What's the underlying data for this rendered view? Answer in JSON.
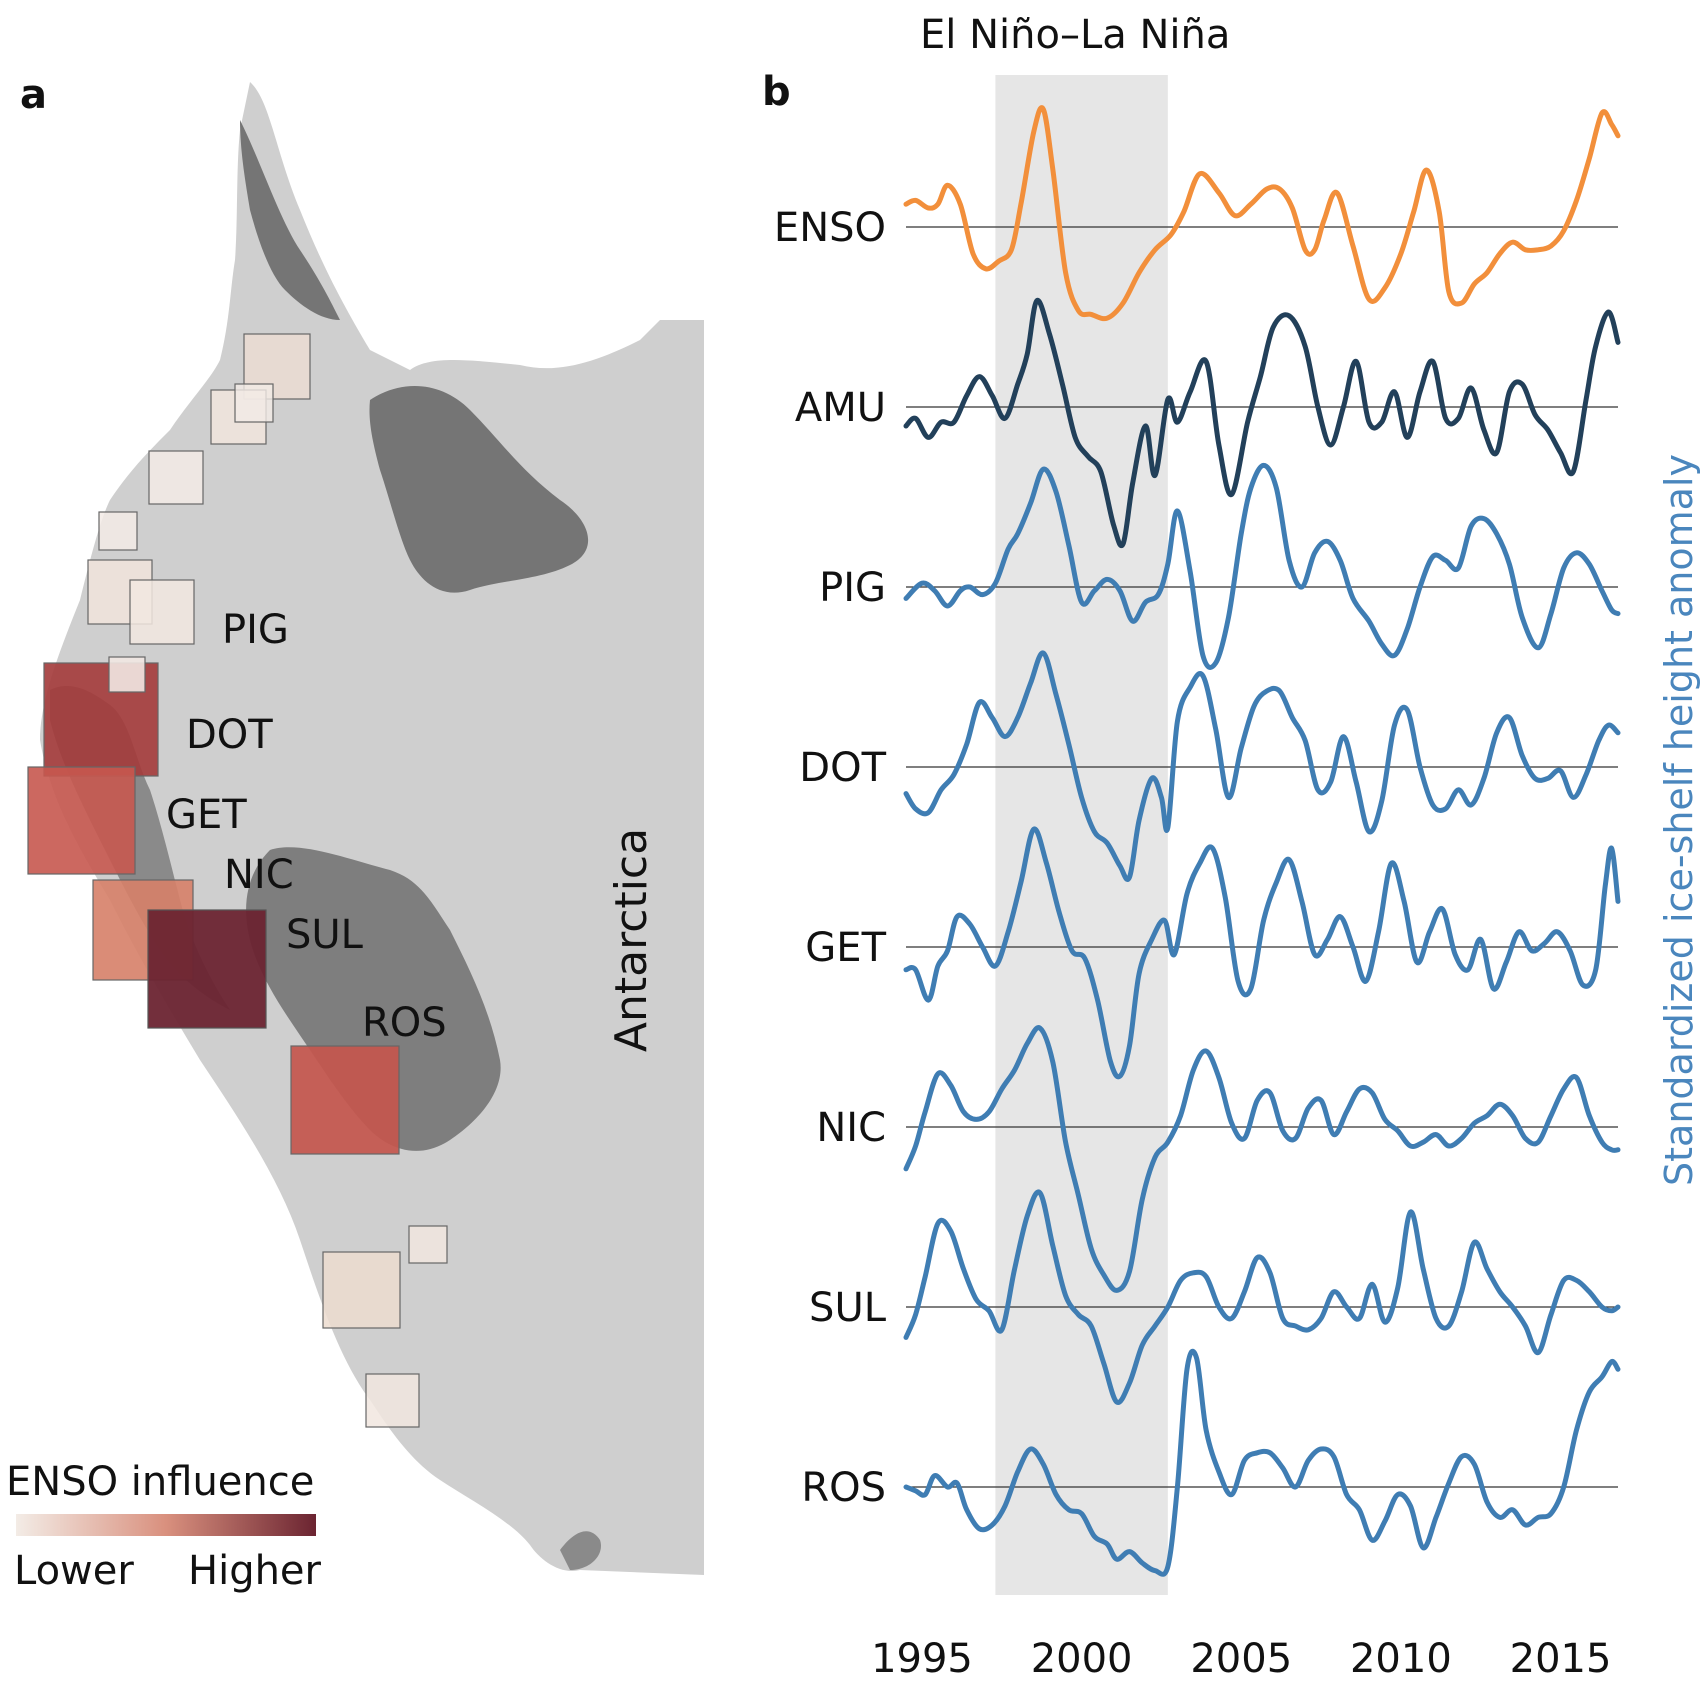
{
  "panel_a": {
    "label": "a",
    "region_label": "Antarctica",
    "boxes": [
      {
        "label": "PIG",
        "influence": 0.05
      },
      {
        "label": "DOT",
        "influence": 0.8
      },
      {
        "label": "GET",
        "influence": 0.6
      },
      {
        "label": "NIC",
        "influence": 0.5
      },
      {
        "label": "SUL",
        "influence": 1.0
      },
      {
        "label": "ROS",
        "influence": 0.7
      }
    ],
    "legend": {
      "title": "ENSO influence",
      "low_label": "Lower",
      "high_label": "Higher",
      "low_color": "#f3ece6",
      "high_color": "#6b2431"
    }
  },
  "panel_b": {
    "label": "b",
    "shade_label": "El Niño–La Niña",
    "shade_range": [
      1997.3,
      2002.7
    ],
    "ylabel": "Standardized ice-shelf height anomaly",
    "xticks": [
      "1995",
      "2000",
      "2005",
      "2010",
      "2015"
    ]
  },
  "chart_data": {
    "type": "line",
    "x_range": [
      1994.5,
      2016.8
    ],
    "x_ticks": [
      1995,
      2000,
      2005,
      2010,
      2015
    ],
    "shaded_interval": [
      1997.3,
      2002.7
    ],
    "ylabel": "Standardized ice-shelf height anomaly",
    "grid": false,
    "y_unit": "standardized anomaly (each series offset vertically, zero line shown)",
    "series": [
      {
        "name": "ENSO",
        "color": "#f28f3b",
        "x": [
          1994.5,
          1994.8,
          1995.2,
          1995.5,
          1995.8,
          1996.2,
          1996.6,
          1997.0,
          1997.4,
          1997.8,
          1998.1,
          1998.5,
          1998.8,
          1999.1,
          1999.5,
          1999.9,
          2000.3,
          2000.8,
          2001.3,
          2001.8,
          2002.3,
          2002.8,
          2003.2,
          2003.7,
          2004.3,
          2004.8,
          2005.3,
          2005.8,
          2006.2,
          2006.6,
          2007.0,
          2007.3,
          2007.6,
          2008.0,
          2008.5,
          2009.0,
          2009.5,
          2010.0,
          2010.4,
          2010.8,
          2011.2,
          2011.5,
          2011.9,
          2012.3,
          2012.7,
          2013.1,
          2013.5,
          2013.9,
          2014.3,
          2014.7,
          2015.1,
          2015.5,
          2015.9,
          2016.3,
          2016.6,
          2016.8
        ],
        "y": [
          0.6,
          0.7,
          0.5,
          0.6,
          1.1,
          0.6,
          -0.7,
          -1.1,
          -0.9,
          -0.6,
          0.6,
          2.5,
          3.1,
          1.5,
          -1.2,
          -2.2,
          -2.3,
          -2.4,
          -2.0,
          -1.2,
          -0.6,
          -0.2,
          0.4,
          1.4,
          0.9,
          0.3,
          0.6,
          1.0,
          1.0,
          0.5,
          -0.6,
          -0.6,
          0.2,
          0.9,
          -0.5,
          -1.9,
          -1.6,
          -0.7,
          0.4,
          1.5,
          0.4,
          -1.7,
          -2.0,
          -1.5,
          -1.2,
          -0.7,
          -0.4,
          -0.6,
          -0.6,
          -0.5,
          -0.1,
          0.7,
          1.8,
          3.0,
          2.7,
          2.4
        ]
      },
      {
        "name": "AMU",
        "color": "#22405a",
        "x": [
          1994.5,
          1994.8,
          1995.2,
          1995.6,
          1996.0,
          1996.4,
          1996.8,
          1997.2,
          1997.6,
          1998.0,
          1998.3,
          1998.6,
          1999.0,
          1999.4,
          1999.8,
          2000.2,
          2000.6,
          2001.0,
          2001.3,
          2001.6,
          2002.0,
          2002.3,
          2002.7,
          2003.0,
          2003.4,
          2003.9,
          2004.3,
          2004.7,
          2005.2,
          2005.6,
          2006.0,
          2006.5,
          2007.0,
          2007.4,
          2007.8,
          2008.2,
          2008.6,
          2009.0,
          2009.4,
          2009.8,
          2010.2,
          2010.6,
          2011.0,
          2011.4,
          2011.8,
          2012.2,
          2012.6,
          2013.0,
          2013.4,
          2013.8,
          2014.2,
          2014.6,
          2015.0,
          2015.4,
          2015.8,
          2016.1,
          2016.5,
          2016.8
        ],
        "y": [
          -0.5,
          -0.3,
          -0.8,
          -0.4,
          -0.4,
          0.3,
          0.8,
          0.3,
          -0.3,
          0.6,
          1.4,
          2.8,
          1.9,
          0.6,
          -0.8,
          -1.3,
          -1.7,
          -3.1,
          -3.6,
          -2.0,
          -0.5,
          -1.8,
          0.2,
          -0.4,
          0.4,
          1.2,
          -1.0,
          -2.3,
          -0.4,
          0.8,
          2.1,
          2.4,
          1.6,
          0.0,
          -1.0,
          0.0,
          1.2,
          -0.4,
          -0.4,
          0.4,
          -0.8,
          0.4,
          1.2,
          -0.3,
          -0.3,
          0.5,
          -0.6,
          -1.2,
          0.4,
          0.6,
          -0.2,
          -0.6,
          -1.2,
          -1.7,
          0.2,
          1.6,
          2.5,
          1.7
        ]
      },
      {
        "name": "PIG",
        "color": "#3f7db3",
        "x": [
          1994.5,
          1995.0,
          1995.4,
          1995.8,
          1996.2,
          1996.5,
          1996.9,
          1997.3,
          1997.7,
          1998.0,
          1998.4,
          1998.8,
          1999.2,
          1999.6,
          2000.0,
          2000.4,
          2000.8,
          2001.2,
          2001.6,
          2002.0,
          2002.4,
          2002.7,
          2003.0,
          2003.4,
          2003.8,
          2004.2,
          2004.6,
          2005.0,
          2005.3,
          2005.7,
          2006.1,
          2006.5,
          2006.9,
          2007.3,
          2007.7,
          2008.1,
          2008.5,
          2009.0,
          2009.4,
          2009.8,
          2010.2,
          2010.6,
          2011.0,
          2011.4,
          2011.8,
          2012.2,
          2012.6,
          2013.0,
          2013.4,
          2013.8,
          2014.3,
          2014.7,
          2015.1,
          2015.5,
          2015.9,
          2016.3,
          2016.6,
          2016.8
        ],
        "y": [
          -0.3,
          0.1,
          -0.1,
          -0.5,
          -0.1,
          0.0,
          -0.2,
          0.1,
          1.0,
          1.4,
          2.2,
          3.1,
          2.5,
          1.1,
          -0.4,
          -0.1,
          0.2,
          -0.1,
          -0.9,
          -0.4,
          -0.2,
          0.6,
          2.0,
          0.4,
          -1.8,
          -2.0,
          -0.8,
          1.4,
          2.6,
          3.2,
          2.6,
          0.7,
          0.0,
          0.9,
          1.2,
          0.7,
          -0.3,
          -0.9,
          -1.5,
          -1.8,
          -1.1,
          0.0,
          0.8,
          0.7,
          0.5,
          1.6,
          1.8,
          1.4,
          0.6,
          -0.8,
          -1.6,
          -0.7,
          0.5,
          0.9,
          0.6,
          -0.1,
          -0.6,
          -0.7
        ]
      },
      {
        "name": "DOT",
        "color": "#3f7db3",
        "x": [
          1994.5,
          1994.8,
          1995.2,
          1995.6,
          1996.0,
          1996.4,
          1996.8,
          1997.2,
          1997.6,
          1998.0,
          1998.4,
          1998.8,
          1999.2,
          1999.6,
          2000.0,
          2000.4,
          2000.8,
          2001.2,
          2001.5,
          2001.8,
          2002.2,
          2002.5,
          2002.7,
          2003.0,
          2003.4,
          2003.8,
          2004.2,
          2004.6,
          2005.0,
          2005.4,
          2005.8,
          2006.2,
          2006.6,
          2007.0,
          2007.4,
          2007.8,
          2008.2,
          2008.6,
          2009.0,
          2009.4,
          2009.8,
          2010.2,
          2010.6,
          2011.0,
          2011.4,
          2011.8,
          2012.2,
          2012.6,
          2013.0,
          2013.4,
          2013.8,
          2014.2,
          2014.6,
          2015.0,
          2015.4,
          2015.8,
          2016.2,
          2016.5,
          2016.8
        ],
        "y": [
          -0.7,
          -1.1,
          -1.2,
          -0.6,
          -0.2,
          0.6,
          1.7,
          1.3,
          0.8,
          1.3,
          2.2,
          3.0,
          1.9,
          0.6,
          -0.8,
          -1.7,
          -2.0,
          -2.6,
          -2.9,
          -1.4,
          -0.3,
          -0.8,
          -1.6,
          1.2,
          2.1,
          2.4,
          1.0,
          -0.8,
          0.5,
          1.6,
          2.0,
          2.0,
          1.3,
          0.7,
          -0.6,
          -0.4,
          0.8,
          -0.4,
          -1.7,
          -0.9,
          1.1,
          1.5,
          0.0,
          -1.0,
          -1.1,
          -0.6,
          -1.0,
          -0.3,
          0.9,
          1.3,
          0.3,
          -0.3,
          -0.3,
          -0.1,
          -0.8,
          -0.2,
          0.7,
          1.1,
          0.9
        ]
      },
      {
        "name": "GET",
        "color": "#3f7db3",
        "x": [
          1994.5,
          1994.8,
          1995.2,
          1995.5,
          1995.8,
          1996.1,
          1996.5,
          1996.9,
          1997.3,
          1997.7,
          1998.1,
          1998.5,
          1998.9,
          1999.3,
          1999.7,
          2000.1,
          2000.5,
          2000.9,
          2001.2,
          2001.5,
          2001.8,
          2002.2,
          2002.6,
          2002.9,
          2003.3,
          2003.7,
          2004.1,
          2004.5,
          2004.9,
          2005.3,
          2005.7,
          2006.1,
          2006.5,
          2006.9,
          2007.3,
          2007.7,
          2008.1,
          2008.5,
          2008.9,
          2009.3,
          2009.7,
          2010.1,
          2010.5,
          2010.9,
          2011.3,
          2011.7,
          2012.1,
          2012.5,
          2012.9,
          2013.3,
          2013.7,
          2014.1,
          2014.5,
          2014.9,
          2015.3,
          2015.7,
          2016.1,
          2016.4,
          2016.6,
          2016.8
        ],
        "y": [
          -0.6,
          -0.6,
          -1.4,
          -0.5,
          -0.1,
          0.8,
          0.6,
          0.0,
          -0.5,
          0.4,
          1.7,
          3.1,
          2.2,
          0.9,
          -0.1,
          -0.3,
          -1.4,
          -3.0,
          -3.4,
          -2.6,
          -0.7,
          0.2,
          0.7,
          -0.2,
          1.4,
          2.2,
          2.6,
          1.3,
          -0.9,
          -1.1,
          0.7,
          1.7,
          2.3,
          1.2,
          -0.2,
          0.2,
          0.8,
          0.0,
          -0.9,
          0.4,
          2.2,
          1.2,
          -0.4,
          0.4,
          1.0,
          -0.2,
          -0.6,
          0.2,
          -1.1,
          -0.4,
          0.4,
          -0.1,
          0.1,
          0.4,
          -0.1,
          -1.0,
          -0.6,
          1.6,
          2.6,
          1.2
        ]
      },
      {
        "name": "NIC",
        "color": "#3f7db3",
        "x": [
          1994.5,
          1994.8,
          1995.1,
          1995.5,
          1995.9,
          1996.3,
          1996.7,
          1997.1,
          1997.5,
          1997.9,
          1998.3,
          1998.7,
          1999.1,
          1999.5,
          1999.9,
          2000.3,
          2000.7,
          2001.1,
          2001.5,
          2001.9,
          2002.3,
          2002.7,
          2003.1,
          2003.5,
          2003.9,
          2004.3,
          2004.7,
          2005.1,
          2005.5,
          2005.9,
          2006.3,
          2006.7,
          2007.1,
          2007.5,
          2007.9,
          2008.3,
          2008.7,
          2009.1,
          2009.5,
          2009.9,
          2010.3,
          2010.7,
          2011.1,
          2011.5,
          2011.9,
          2012.3,
          2012.7,
          2013.1,
          2013.5,
          2013.9,
          2014.3,
          2014.7,
          2015.1,
          2015.5,
          2015.9,
          2016.3,
          2016.6,
          2016.8
        ],
        "y": [
          -1.1,
          -0.5,
          0.4,
          1.4,
          1.1,
          0.4,
          0.2,
          0.4,
          1.0,
          1.5,
          2.2,
          2.6,
          1.7,
          -0.4,
          -1.8,
          -3.2,
          -3.9,
          -4.3,
          -3.8,
          -1.9,
          -0.8,
          -0.4,
          0.3,
          1.5,
          2.0,
          1.3,
          0.1,
          -0.3,
          0.7,
          0.9,
          -0.1,
          -0.3,
          0.5,
          0.7,
          -0.2,
          0.4,
          1.0,
          0.9,
          0.2,
          -0.1,
          -0.5,
          -0.4,
          -0.2,
          -0.5,
          -0.3,
          0.1,
          0.3,
          0.6,
          0.3,
          -0.3,
          -0.4,
          0.3,
          1.0,
          1.3,
          0.3,
          -0.4,
          -0.6,
          -0.6
        ]
      },
      {
        "name": "SUL",
        "color": "#3f7db3",
        "x": [
          1994.5,
          1994.8,
          1995.1,
          1995.5,
          1995.9,
          1996.3,
          1996.7,
          1997.1,
          1997.5,
          1997.9,
          1998.3,
          1998.7,
          1999.1,
          1999.5,
          1999.9,
          2000.3,
          2000.7,
          2001.1,
          2001.5,
          2001.9,
          2002.3,
          2002.7,
          2003.1,
          2003.5,
          2003.9,
          2004.3,
          2004.7,
          2005.1,
          2005.5,
          2005.9,
          2006.3,
          2006.7,
          2007.1,
          2007.5,
          2007.9,
          2008.3,
          2008.7,
          2009.1,
          2009.5,
          2009.9,
          2010.3,
          2010.7,
          2011.1,
          2011.5,
          2011.9,
          2012.3,
          2012.7,
          2013.1,
          2013.5,
          2013.9,
          2014.3,
          2014.7,
          2015.1,
          2015.5,
          2015.9,
          2016.3,
          2016.6,
          2016.8
        ],
        "y": [
          -0.8,
          -0.2,
          0.8,
          2.2,
          2.0,
          1.0,
          0.2,
          -0.1,
          -0.6,
          1.0,
          2.4,
          3.0,
          1.6,
          0.3,
          -0.2,
          -0.5,
          -1.5,
          -2.5,
          -2.0,
          -1.0,
          -0.5,
          0.0,
          0.7,
          0.9,
          0.8,
          0.0,
          -0.3,
          0.4,
          1.3,
          0.9,
          -0.3,
          -0.5,
          -0.6,
          -0.3,
          0.4,
          0.0,
          -0.3,
          0.6,
          -0.4,
          0.5,
          2.5,
          1.0,
          -0.3,
          -0.5,
          0.4,
          1.7,
          1.0,
          0.4,
          0.0,
          -0.5,
          -1.2,
          -0.2,
          0.7,
          0.7,
          0.4,
          0.0,
          -0.1,
          0.0
        ]
      },
      {
        "name": "ROS",
        "color": "#3f7db3",
        "x": [
          1994.5,
          1994.8,
          1995.1,
          1995.4,
          1995.8,
          1996.1,
          1996.4,
          1996.8,
          1997.2,
          1997.6,
          1998.0,
          1998.4,
          1998.8,
          1999.2,
          1999.6,
          2000.0,
          2000.4,
          2000.8,
          2001.1,
          2001.5,
          2001.9,
          2002.3,
          2002.7,
          2003.0,
          2003.3,
          2003.6,
          2003.9,
          2004.3,
          2004.7,
          2005.1,
          2005.5,
          2005.9,
          2006.3,
          2006.7,
          2007.1,
          2007.5,
          2007.9,
          2008.3,
          2008.7,
          2009.1,
          2009.5,
          2009.9,
          2010.3,
          2010.7,
          2011.1,
          2011.5,
          2011.9,
          2012.3,
          2012.7,
          2013.1,
          2013.5,
          2013.9,
          2014.3,
          2014.7,
          2015.1,
          2015.5,
          2015.9,
          2016.3,
          2016.6,
          2016.8
        ],
        "y": [
          0.0,
          -0.1,
          -0.2,
          0.3,
          0.0,
          0.1,
          -0.6,
          -1.1,
          -1.0,
          -0.5,
          0.4,
          1.0,
          0.6,
          -0.2,
          -0.6,
          -0.7,
          -1.3,
          -1.5,
          -1.9,
          -1.7,
          -2.0,
          -2.2,
          -2.1,
          0.0,
          3.1,
          3.4,
          1.5,
          0.4,
          -0.2,
          0.7,
          0.9,
          0.9,
          0.5,
          0.0,
          0.7,
          1.0,
          0.8,
          -0.2,
          -0.6,
          -1.4,
          -0.9,
          -0.2,
          -0.5,
          -1.6,
          -0.8,
          0.1,
          0.8,
          0.6,
          -0.4,
          -0.8,
          -0.6,
          -1.0,
          -0.8,
          -0.7,
          0.0,
          1.5,
          2.5,
          2.9,
          3.3,
          3.1
        ]
      }
    ]
  }
}
